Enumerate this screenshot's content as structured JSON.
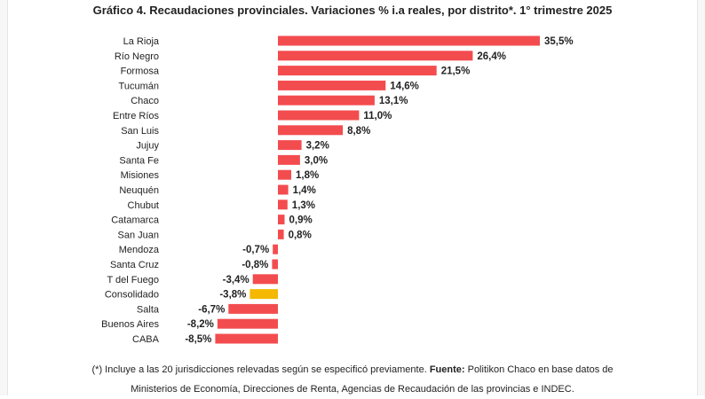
{
  "title": "Gráfico 4. Recaudaciones provinciales. Variaciones % i.a reales, por distrito*. 1° trimestre 2025",
  "footnote": {
    "line1_prefix": "(*) Incluye a las 20 jurisdicciones relevadas según se especificó previamente. ",
    "source_label": "Fuente:",
    "line1_suffix": " Politikon Chaco en base datos de",
    "line2": "Ministerios de Economía, Direcciones de Renta, Agencias de Recaudación de las provincias e INDEC."
  },
  "colors": {
    "bar": "#f34c4f",
    "highlight": "#f4b800"
  },
  "chart_data": {
    "type": "bar",
    "orientation": "horizontal",
    "title": "Gráfico 4. Recaudaciones provinciales. Variaciones % i.a reales, por distrito*. 1° trimestre 2025",
    "xlabel": "",
    "ylabel": "",
    "categories": [
      "La Rioja",
      "Río Negro",
      "Formosa",
      "Tucumán",
      "Chaco",
      "Entre Ríos",
      "San Luis",
      "Jujuy",
      "Santa Fe",
      "Misiones",
      "Neuquén",
      "Chubut",
      "Catamarca",
      "San Juan",
      "Mendoza",
      "Santa Cruz",
      "T del Fuego",
      "Consolidado",
      "Salta",
      "Buenos Aires",
      "CABA"
    ],
    "values": [
      35.5,
      26.4,
      21.5,
      14.6,
      13.1,
      11.0,
      8.8,
      3.2,
      3.0,
      1.8,
      1.4,
      1.3,
      0.9,
      0.8,
      -0.7,
      -0.8,
      -3.4,
      -3.8,
      -6.7,
      -8.2,
      -8.5
    ],
    "value_labels": [
      "35,5%",
      "26,4%",
      "21,5%",
      "14,6%",
      "13,1%",
      "11,0%",
      "8,8%",
      "3,2%",
      "3,0%",
      "1,8%",
      "1,4%",
      "1,3%",
      "0,9%",
      "0,8%",
      "-0,7%",
      "-0,8%",
      "-3,4%",
      "-3,8%",
      "-6,7%",
      "-8,2%",
      "-8,5%"
    ],
    "highlight": "Consolidado",
    "xlim": [
      -8.5,
      35.5
    ],
    "grid": false,
    "legend": "none"
  }
}
